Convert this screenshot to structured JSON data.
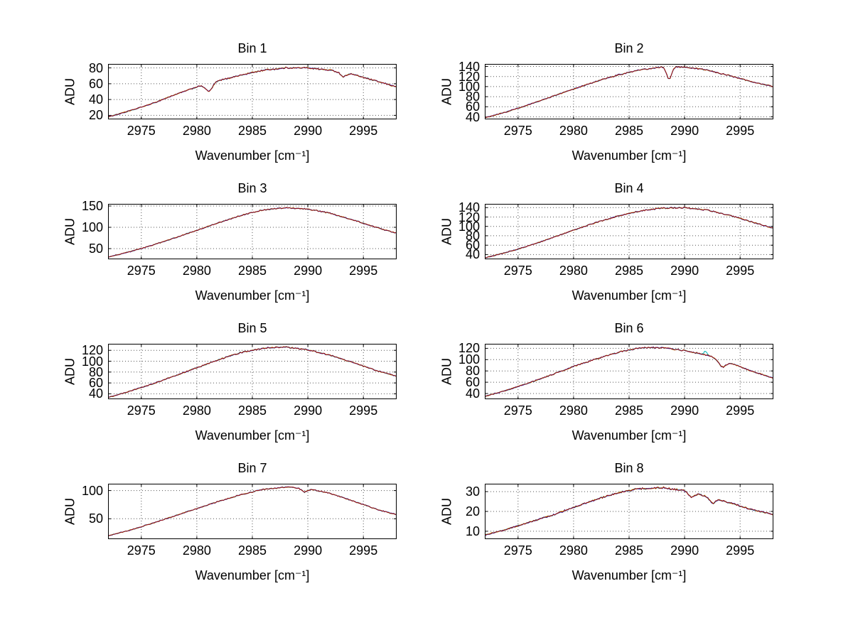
{
  "figure": {
    "background": "#ffffff",
    "layout": "4x2 subplot grid"
  },
  "chart_data": [
    {
      "type": "line",
      "title": "Bin 1",
      "xlabel": "Wavenumber [cm⁻¹]",
      "ylabel": "ADU",
      "xlim": [
        2972,
        2998
      ],
      "ylim": [
        15,
        85
      ],
      "x_ticks": [
        2975,
        2980,
        2985,
        2990,
        2995
      ],
      "y_ticks": [
        20,
        40,
        60,
        80
      ],
      "grid": "dotted",
      "series_colors": [
        "#00b2b2",
        "#b2a000",
        "#2222bb",
        "#a01010"
      ],
      "x": [
        2972,
        2974,
        2976,
        2978,
        2980,
        2982,
        2984,
        2986,
        2988,
        2990,
        2992,
        2994,
        2996,
        2998
      ],
      "values": [
        18,
        26,
        35,
        46,
        56,
        64,
        71,
        77,
        80,
        80,
        77,
        72,
        64,
        56
      ],
      "dips": [
        {
          "x": 2981.1,
          "depth": 10,
          "width": 0.3
        },
        {
          "x": 2993.2,
          "depth": 5,
          "width": 0.25
        }
      ],
      "spikes": [],
      "noise": 0.8
    },
    {
      "type": "line",
      "title": "Bin 2",
      "xlabel": "Wavenumber [cm⁻¹]",
      "ylabel": "ADU",
      "xlim": [
        2972,
        2998
      ],
      "ylim": [
        35,
        145
      ],
      "x_ticks": [
        2975,
        2980,
        2985,
        2990,
        2995
      ],
      "y_ticks": [
        40,
        60,
        80,
        100,
        120,
        140
      ],
      "grid": "dotted",
      "series_colors": [
        "#00b2b2",
        "#b2a000",
        "#2222bb",
        "#a01010"
      ],
      "x": [
        2972,
        2974,
        2976,
        2978,
        2980,
        2982,
        2984,
        2986,
        2988,
        2990,
        2992,
        2994,
        2996,
        2998
      ],
      "values": [
        38,
        50,
        64,
        80,
        95,
        110,
        123,
        133,
        139,
        139,
        133,
        122,
        110,
        100
      ],
      "dips": [
        {
          "x": 2988.6,
          "depth": 24,
          "width": 0.22
        }
      ],
      "spikes": [],
      "noise": 1.2
    },
    {
      "type": "line",
      "title": "Bin 3",
      "xlabel": "Wavenumber [cm⁻¹]",
      "ylabel": "ADU",
      "xlim": [
        2972,
        2998
      ],
      "ylim": [
        25,
        155
      ],
      "x_ticks": [
        2975,
        2980,
        2985,
        2990,
        2995
      ],
      "y_ticks": [
        50,
        100,
        150
      ],
      "grid": "dotted",
      "series_colors": [
        "#00b2b2",
        "#b2a000",
        "#2222bb",
        "#a01010"
      ],
      "x": [
        2972,
        2974,
        2976,
        2978,
        2980,
        2982,
        2984,
        2986,
        2988,
        2990,
        2992,
        2994,
        2996,
        2998
      ],
      "values": [
        30,
        43,
        58,
        75,
        93,
        111,
        128,
        141,
        146,
        143,
        133,
        118,
        101,
        86
      ],
      "dips": [],
      "spikes": [],
      "noise": 1.2
    },
    {
      "type": "line",
      "title": "Bin 4",
      "xlabel": "Wavenumber [cm⁻¹]",
      "ylabel": "ADU",
      "xlim": [
        2972,
        2998
      ],
      "ylim": [
        30,
        148
      ],
      "x_ticks": [
        2975,
        2980,
        2985,
        2990,
        2995
      ],
      "y_ticks": [
        40,
        60,
        80,
        100,
        120,
        140
      ],
      "grid": "dotted",
      "series_colors": [
        "#00b2b2",
        "#b2a000",
        "#2222bb",
        "#a01010"
      ],
      "x": [
        2972,
        2974,
        2976,
        2978,
        2980,
        2982,
        2984,
        2986,
        2988,
        2990,
        2992,
        2994,
        2996,
        2998
      ],
      "values": [
        33,
        45,
        59,
        75,
        92,
        108,
        122,
        133,
        139,
        140,
        135,
        124,
        110,
        96
      ],
      "dips": [],
      "spikes": [],
      "noise": 1.2
    },
    {
      "type": "line",
      "title": "Bin 5",
      "xlabel": "Wavenumber [cm⁻¹]",
      "ylabel": "ADU",
      "xlim": [
        2972,
        2998
      ],
      "ylim": [
        30,
        132
      ],
      "x_ticks": [
        2975,
        2980,
        2985,
        2990,
        2995
      ],
      "y_ticks": [
        40,
        60,
        80,
        100,
        120
      ],
      "grid": "dotted",
      "series_colors": [
        "#00b2b2",
        "#b2a000",
        "#2222bb",
        "#a01010"
      ],
      "x": [
        2972,
        2974,
        2976,
        2978,
        2980,
        2982,
        2984,
        2986,
        2988,
        2990,
        2992,
        2994,
        2996,
        2998
      ],
      "values": [
        33,
        45,
        58,
        73,
        88,
        103,
        116,
        124,
        126,
        121,
        111,
        98,
        84,
        72
      ],
      "dips": [],
      "spikes": [],
      "noise": 1.1
    },
    {
      "type": "line",
      "title": "Bin 6",
      "xlabel": "Wavenumber [cm⁻¹]",
      "ylabel": "ADU",
      "xlim": [
        2972,
        2998
      ],
      "ylim": [
        30,
        128
      ],
      "x_ticks": [
        2975,
        2980,
        2985,
        2990,
        2995
      ],
      "y_ticks": [
        40,
        60,
        80,
        100,
        120
      ],
      "grid": "dotted",
      "series_colors": [
        "#00b2b2",
        "#b2a000",
        "#2222bb",
        "#a01010"
      ],
      "x": [
        2972,
        2974,
        2976,
        2978,
        2980,
        2982,
        2984,
        2986,
        2988,
        2990,
        2992,
        2994,
        2996,
        2998
      ],
      "values": [
        35,
        46,
        59,
        73,
        88,
        101,
        113,
        121,
        121,
        116,
        108,
        95,
        80,
        67
      ],
      "dips": [
        {
          "x": 2993.4,
          "depth": 12,
          "width": 0.3
        }
      ],
      "spikes": [
        {
          "x": 2991.9,
          "amp": 7,
          "width": 0.12,
          "series": 0
        }
      ],
      "noise": 1.1
    },
    {
      "type": "line",
      "title": "Bin 7",
      "xlabel": "Wavenumber [cm⁻¹]",
      "ylabel": "ADU",
      "xlim": [
        2972,
        2998
      ],
      "ylim": [
        14,
        112
      ],
      "x_ticks": [
        2975,
        2980,
        2985,
        2990,
        2995
      ],
      "y_ticks": [
        50,
        100
      ],
      "grid": "dotted",
      "series_colors": [
        "#00b2b2",
        "#b2a000",
        "#2222bb",
        "#a01010"
      ],
      "x": [
        2972,
        2974,
        2976,
        2978,
        2980,
        2982,
        2984,
        2986,
        2988,
        2990,
        2992,
        2994,
        2996,
        2998
      ],
      "values": [
        20,
        30,
        42,
        55,
        68,
        81,
        93,
        102,
        106,
        103,
        95,
        82,
        68,
        57
      ],
      "dips": [
        {
          "x": 2989.7,
          "depth": 6,
          "width": 0.25
        }
      ],
      "spikes": [],
      "noise": 0.9
    },
    {
      "type": "line",
      "title": "Bin 8",
      "xlabel": "Wavenumber [cm⁻¹]",
      "ylabel": "ADU",
      "xlim": [
        2972,
        2998
      ],
      "ylim": [
        6,
        34
      ],
      "x_ticks": [
        2975,
        2980,
        2985,
        2990,
        2995
      ],
      "y_ticks": [
        10,
        20,
        30
      ],
      "grid": "dotted",
      "series_colors": [
        "#00b2b2",
        "#b2a000",
        "#2222bb",
        "#a01010"
      ],
      "x": [
        2972,
        2974,
        2976,
        2978,
        2980,
        2982,
        2984,
        2986,
        2988,
        2990,
        2992,
        2994,
        2996,
        2998
      ],
      "values": [
        8,
        11,
        14.5,
        18,
        22,
        26,
        29.5,
        31.5,
        32,
        30.5,
        27.5,
        24.5,
        21,
        18.5
      ],
      "dips": [
        {
          "x": 2990.6,
          "depth": 2.5,
          "width": 0.25
        },
        {
          "x": 2992.5,
          "depth": 2.5,
          "width": 0.25
        }
      ],
      "spikes": [],
      "noise": 0.4
    }
  ]
}
